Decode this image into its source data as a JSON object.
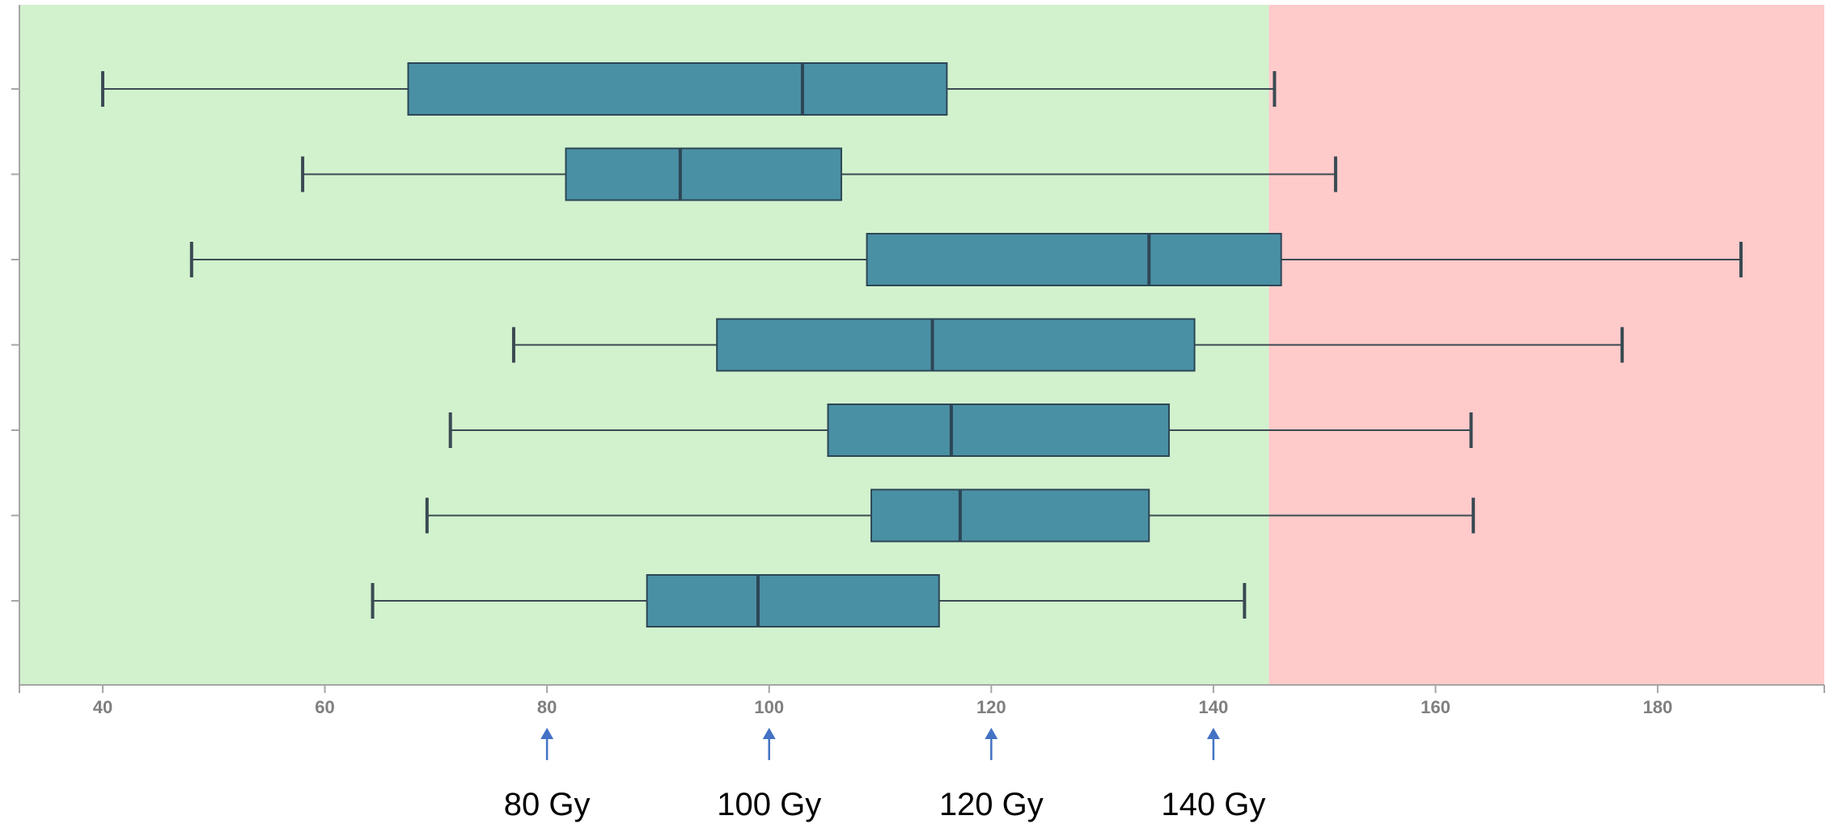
{
  "chart_data": {
    "type": "boxplot",
    "orientation": "horizontal",
    "title": "",
    "xlabel": "",
    "ylabel": "",
    "xlim": [
      32.5,
      195
    ],
    "x_ticks": [
      40,
      60,
      80,
      100,
      120,
      140,
      160,
      180
    ],
    "x_tick_labels": [
      "40",
      "60",
      "80",
      "100",
      "120",
      "140",
      "160",
      "180"
    ],
    "threshold": 145,
    "colors": {
      "below_threshold": "#d1f2cd",
      "above_threshold": "#ffcaca",
      "box_fill": "#4a90a4",
      "box_stroke": "#2d4656",
      "whisker": "#3a4a52",
      "axis": "#a6a6a6",
      "arrow": "#4472c4"
    },
    "boxes": [
      {
        "min": 40,
        "q1": 67.5,
        "median": 103,
        "q3": 116,
        "max": 145.5
      },
      {
        "min": 58,
        "q1": 81.7,
        "median": 92,
        "q3": 106.5,
        "max": 151
      },
      {
        "min": 48,
        "q1": 108.8,
        "median": 134.2,
        "q3": 146.1,
        "max": 187.5
      },
      {
        "min": 77,
        "q1": 95.3,
        "median": 114.7,
        "q3": 138.3,
        "max": 176.8
      },
      {
        "min": 71.3,
        "q1": 105.3,
        "median": 116.4,
        "q3": 136,
        "max": 163.2
      },
      {
        "min": 69.2,
        "q1": 109.2,
        "median": 117.2,
        "q3": 134.2,
        "max": 163.4
      },
      {
        "min": 64.3,
        "q1": 89,
        "median": 99,
        "q3": 115.3,
        "max": 142.8
      }
    ],
    "annotations": [
      {
        "value": 80,
        "label": "80 Gy"
      },
      {
        "value": 100,
        "label": "100 Gy"
      },
      {
        "value": 120,
        "label": "120 Gy"
      },
      {
        "value": 140,
        "label": "140 Gy"
      }
    ]
  }
}
